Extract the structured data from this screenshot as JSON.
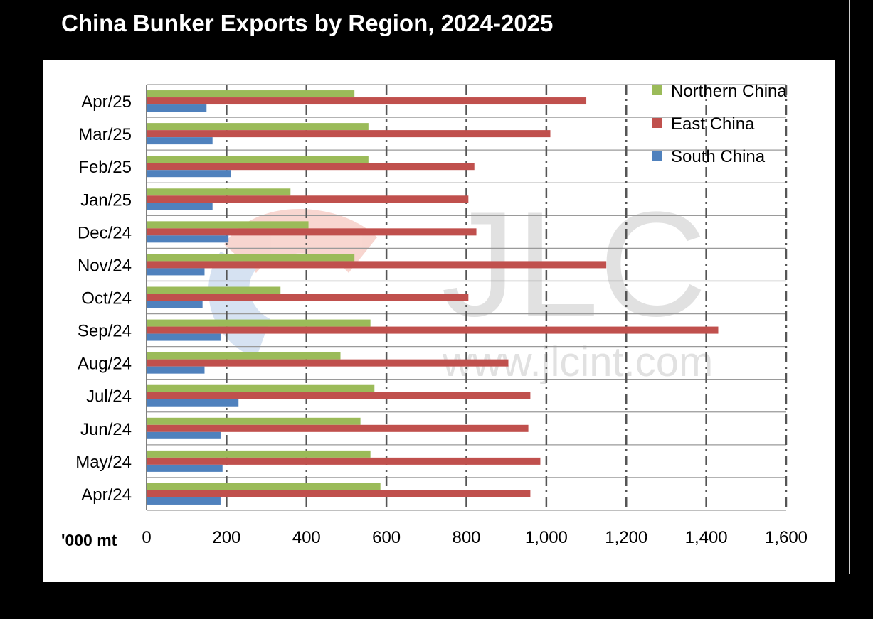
{
  "title": "China Bunker Exports by Region, 2024-2025",
  "unit_label": "'000 mt",
  "watermark": {
    "logo_text": "JLC",
    "url_text": "www.jlcint.com"
  },
  "colors": {
    "northern": "#9bbb59",
    "east": "#c0504d",
    "south": "#4f81bd"
  },
  "chart_data": {
    "type": "bar",
    "orientation": "horizontal",
    "categories": [
      "Apr/25",
      "Mar/25",
      "Feb/25",
      "Jan/25",
      "Dec/24",
      "Nov/24",
      "Oct/24",
      "Sep/24",
      "Aug/24",
      "Jul/24",
      "Jun/24",
      "May/24",
      "Apr/24"
    ],
    "series": [
      {
        "name": "Northern China",
        "values": [
          520,
          555,
          555,
          360,
          405,
          520,
          335,
          560,
          485,
          570,
          535,
          560,
          585
        ]
      },
      {
        "name": "East China",
        "values": [
          1100,
          1010,
          820,
          805,
          825,
          1150,
          805,
          1430,
          905,
          960,
          955,
          985,
          960
        ]
      },
      {
        "name": "South China",
        "values": [
          150,
          165,
          210,
          165,
          205,
          145,
          140,
          185,
          145,
          230,
          185,
          190,
          185
        ]
      }
    ],
    "xlim": [
      0,
      1600
    ],
    "xticks": [
      "0",
      "200",
      "400",
      "600",
      "800",
      "1,000",
      "1,200",
      "1,400",
      "1,600"
    ],
    "xlabel": "'000 mt",
    "ylabel": "",
    "grid": true,
    "legend_position": "top-right"
  }
}
